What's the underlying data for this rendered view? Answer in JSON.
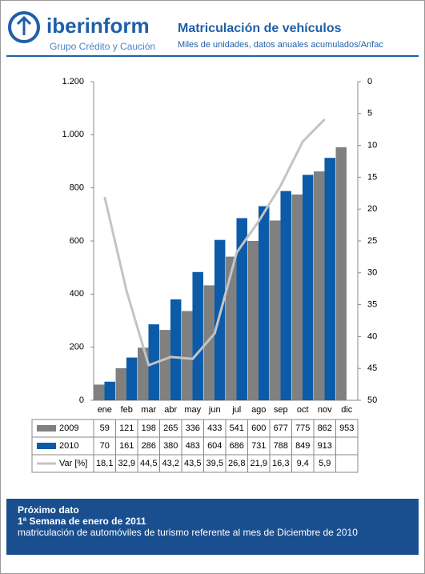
{
  "header": {
    "brand": "iberinform",
    "tagline": "Grupo Crédito y Caución"
  },
  "chart_data": {
    "type": "bar",
    "title": "Matriculación de vehículos",
    "subtitle": "Miles de unidades, datos anuales acumulados/Anfac",
    "categories": [
      "ene",
      "feb",
      "mar",
      "abr",
      "may",
      "jun",
      "jul",
      "ago",
      "sep",
      "oct",
      "nov",
      "dic"
    ],
    "series": [
      {
        "name": "2009",
        "color": "#808080",
        "values": [
          59,
          121,
          198,
          265,
          336,
          433,
          541,
          600,
          677,
          775,
          862,
          953
        ]
      },
      {
        "name": "2010",
        "color": "#0b5ba8",
        "values": [
          70,
          161,
          286,
          380,
          483,
          604,
          686,
          731,
          788,
          849,
          913,
          null
        ]
      },
      {
        "name": "Var [%]",
        "type": "line",
        "axis": "y2",
        "color": "#c4c4c4",
        "values": [
          18.1,
          32.9,
          44.5,
          43.2,
          43.5,
          39.5,
          26.8,
          21.9,
          16.3,
          9.4,
          5.9,
          null
        ],
        "value_labels": [
          "18,1",
          "32,9",
          "44,5",
          "43,2",
          "43,5",
          "39,5",
          "26,8",
          "21,9",
          "16,3",
          "9,4",
          "5,9",
          null
        ]
      }
    ],
    "ylim": [
      0,
      1200
    ],
    "yticks": [
      0,
      200,
      400,
      600,
      800,
      {
        "value": 1000,
        "label": "1.000"
      },
      {
        "value": 1200,
        "label": "1.200"
      }
    ],
    "y2lim": [
      50,
      0
    ],
    "y2ticks": [
      0,
      5,
      10,
      15,
      20,
      25,
      30,
      35,
      40,
      45,
      50
    ],
    "grid": false
  },
  "footer": {
    "lines": [
      "Próximo dato",
      "1ª Semana de enero de 2011",
      "matriculación de automóviles de turismo referente al mes de Diciembre de 2010"
    ]
  }
}
